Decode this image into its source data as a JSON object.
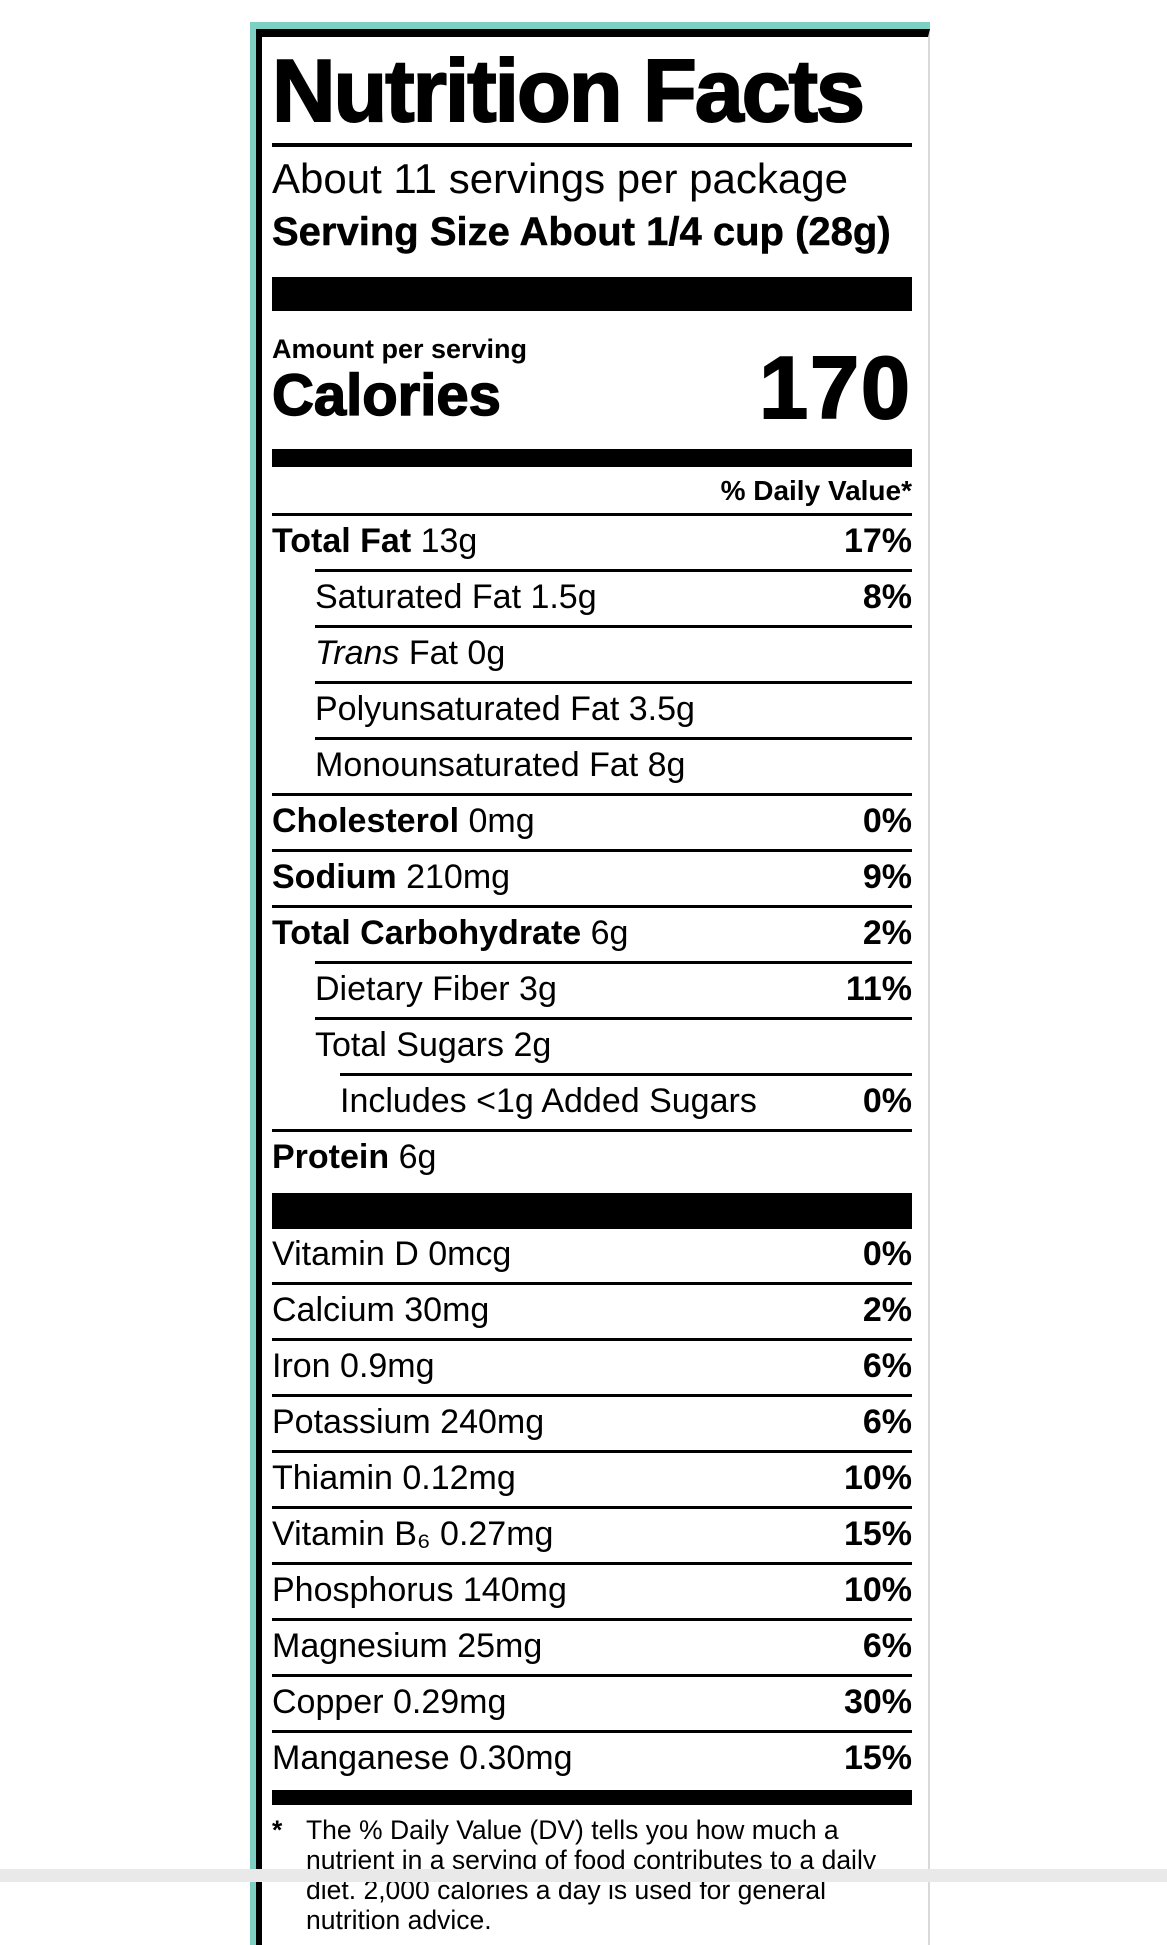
{
  "label": {
    "title": "Nutrition Facts",
    "servings_per_package": "About 11 servings per package",
    "serving_size": "Serving Size About 1/4 cup (28g)",
    "amount_per_serving": "Amount per serving",
    "calories_label": "Calories",
    "calories_value": "170",
    "daily_value_header": "% Daily Value*",
    "nutrients": [
      {
        "bold": "Total Fat",
        "rest": " 13g",
        "dv": "17%"
      },
      {
        "rest": "Saturated Fat 1.5g",
        "dv": "8%"
      },
      {
        "italic": "Trans",
        "rest": " Fat 0g",
        "dv": ""
      },
      {
        "rest": "Polyunsaturated Fat 3.5g",
        "dv": ""
      },
      {
        "rest": "Monounsaturated Fat 8g",
        "dv": ""
      },
      {
        "bold": "Cholesterol",
        "rest": " 0mg",
        "dv": "0%"
      },
      {
        "bold": "Sodium",
        "rest": " 210mg",
        "dv": "9%"
      },
      {
        "bold": "Total Carbohydrate",
        "rest": " 6g",
        "dv": "2%"
      },
      {
        "rest": "Dietary Fiber 3g",
        "dv": "11%"
      },
      {
        "rest": "Total Sugars 2g",
        "dv": ""
      },
      {
        "rest": "Includes <1g Added Sugars",
        "dv": "0%"
      },
      {
        "bold": "Protein",
        "rest": " 6g",
        "dv": ""
      }
    ],
    "micronutrients": [
      {
        "rest": "Vitamin D 0mcg",
        "dv": "0%"
      },
      {
        "rest": "Calcium 30mg",
        "dv": "2%"
      },
      {
        "rest": "Iron 0.9mg",
        "dv": "6%"
      },
      {
        "rest": "Potassium 240mg",
        "dv": "6%"
      },
      {
        "rest": "Thiamin 0.12mg",
        "dv": "10%"
      },
      {
        "rest": "Vitamin B₆ 0.27mg",
        "dv": "15%"
      },
      {
        "rest": "Phosphorus 140mg",
        "dv": "10%"
      },
      {
        "rest": "Magnesium 25mg",
        "dv": "6%"
      },
      {
        "rest": "Copper 0.29mg",
        "dv": "30%"
      },
      {
        "rest": "Manganese 0.30mg",
        "dv": "15%"
      }
    ],
    "footnote_symbol": "*",
    "footnote": "The % Daily Value (DV) tells you how much a nutrient in a serving of food contributes to a daily diet. 2,000 calories a day is used for general nutrition advice."
  },
  "colors": {
    "accent_teal": "#7ed0c2",
    "text_black": "#000000",
    "label_background": "#ffffff",
    "bottom_strip_gray": "#e9e9e9",
    "right_edge_gray": "#d9d9d9"
  }
}
